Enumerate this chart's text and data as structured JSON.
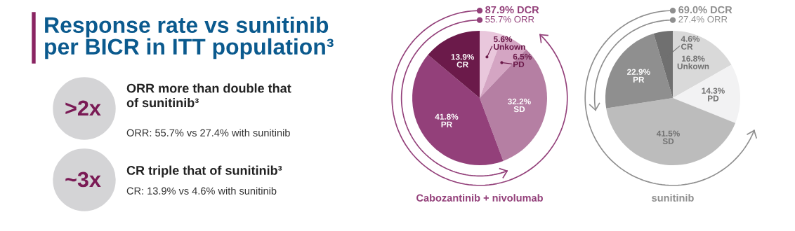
{
  "chart_data": [
    {
      "type": "other",
      "title": "Response rate vs sunitinib\nper BICR in ITT population³",
      "annotations": [
        ">2x",
        "ORR more than double that\nof sunitinib³",
        "ORR: 55.7% vs 27.4% with sunitinib",
        "~3x",
        "CR triple that of sunitinib³",
        "CR: 13.9% vs 4.6% with sunitinib"
      ]
    },
    {
      "type": "pie",
      "title": "Cabozantinib + nivolumab",
      "annotations": [
        "87.9% DCR",
        "55.7% ORR"
      ],
      "categories": [
        "Unkown",
        "PD",
        "SD",
        "PR",
        "CR"
      ],
      "values": [
        5.6,
        6.5,
        32.2,
        41.8,
        13.9
      ],
      "value_labels": [
        "5.6%",
        "6.5%",
        "32.2%",
        "41.8%",
        "13.9%"
      ],
      "colors": [
        "#e9c7dc",
        "#d4a5c3",
        "#b57fa3",
        "#93407a",
        "#6b1a4a"
      ]
    },
    {
      "type": "pie",
      "title": "sunitinib",
      "annotations": [
        "69.0% DCR",
        "27.4% ORR"
      ],
      "categories": [
        "Unkown",
        "PD",
        "SD",
        "PR",
        "CR"
      ],
      "values": [
        16.8,
        14.3,
        41.5,
        22.9,
        4.6
      ],
      "value_labels": [
        "16.8%",
        "14.3%",
        "41.5%",
        "22.9%",
        "4.6%"
      ],
      "colors": [
        "#d9d9d9",
        "#f2f2f3",
        "#bcbcbc",
        "#8f8f8f",
        "#707070"
      ]
    }
  ]
}
